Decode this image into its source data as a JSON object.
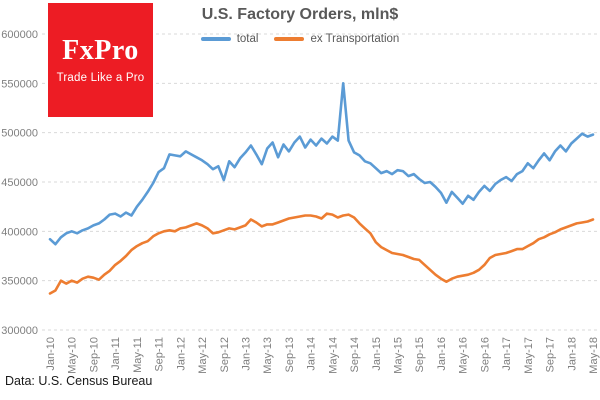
{
  "logo": {
    "name": "FxPro",
    "tagline": "Trade Like a Pro",
    "background_color": "#ED1C24",
    "text_color": "#FFFFFF"
  },
  "footer": {
    "source": "Data: U.S. Census Bureau"
  },
  "colors": {
    "total_line": "#5B9BD5",
    "ex_transportation_line": "#ED7D31",
    "gridline": "#D9D9D9",
    "axis_text": "#7F7F7F",
    "title_text": "#595959"
  },
  "chart_data": {
    "type": "line",
    "title": "U.S. Factory Orders, mln$",
    "xlabel": "",
    "ylabel": "",
    "ylim": [
      300000,
      600000
    ],
    "y_ticks": [
      600000,
      550000,
      500000,
      450000,
      400000,
      350000,
      300000
    ],
    "grid": "horizontal-dashed",
    "legend_position": "top",
    "x_start": "Jan-10",
    "x_end": "May-18",
    "x_frequency": "monthly",
    "x_tick_labels": [
      "Jan-10",
      "May-10",
      "Sep-10",
      "Jan-11",
      "May-11",
      "Sep-11",
      "Jan-12",
      "May-12",
      "Sep-12",
      "Jan-13",
      "May-13",
      "Sep-13",
      "Jan-14",
      "May-14",
      "Sep-14",
      "Jan-15",
      "May-15",
      "Sep-15",
      "Jan-16",
      "May-16",
      "Sep-16",
      "Jan-17",
      "May-17",
      "Sep-17",
      "Jan-18",
      "May-18"
    ],
    "series": [
      {
        "name": "total",
        "color": "#5B9BD5",
        "values": [
          392000,
          387000,
          394000,
          398000,
          400000,
          398000,
          401000,
          403000,
          406000,
          408000,
          412000,
          417000,
          418000,
          415000,
          419000,
          416000,
          425000,
          432000,
          440000,
          449000,
          460000,
          464000,
          478000,
          477000,
          476000,
          481000,
          478000,
          475000,
          472000,
          468000,
          463000,
          466000,
          452000,
          471000,
          465000,
          474000,
          480000,
          487000,
          478000,
          468000,
          484000,
          490000,
          475000,
          488000,
          481000,
          490000,
          496000,
          485000,
          493000,
          487000,
          494000,
          489000,
          496000,
          492000,
          550000,
          492000,
          480000,
          477000,
          471000,
          469000,
          464000,
          459000,
          461000,
          458000,
          462000,
          461000,
          456000,
          458000,
          453000,
          449000,
          450000,
          445000,
          439000,
          429000,
          440000,
          434000,
          428000,
          436000,
          432000,
          440000,
          446000,
          441000,
          448000,
          452000,
          455000,
          451000,
          458000,
          461000,
          469000,
          464000,
          472000,
          479000,
          472000,
          481000,
          487000,
          481000,
          489000,
          494000,
          499000,
          496000,
          498000
        ]
      },
      {
        "name": "ex Transportation",
        "color": "#ED7D31",
        "values": [
          337000,
          340000,
          350000,
          347000,
          350000,
          348000,
          352000,
          354000,
          353000,
          351000,
          356000,
          360000,
          366000,
          370000,
          375000,
          381000,
          385000,
          388000,
          390000,
          395000,
          398000,
          400000,
          401000,
          400000,
          403000,
          404000,
          406000,
          408000,
          406000,
          403000,
          398000,
          399000,
          401000,
          403000,
          402000,
          404000,
          406000,
          412000,
          409000,
          405000,
          407000,
          407000,
          409000,
          411000,
          413000,
          414000,
          415000,
          416000,
          416000,
          415000,
          413000,
          418000,
          417000,
          414000,
          416000,
          417000,
          414000,
          408000,
          403000,
          398000,
          389000,
          384000,
          381000,
          378000,
          377000,
          376000,
          374000,
          372000,
          371000,
          366000,
          361000,
          356000,
          352000,
          349000,
          352000,
          354000,
          355000,
          356000,
          358000,
          361000,
          366000,
          373000,
          376000,
          377000,
          378000,
          380000,
          382000,
          382000,
          385000,
          388000,
          392000,
          394000,
          397000,
          399000,
          402000,
          404000,
          406000,
          408000,
          409000,
          410000,
          412000
        ]
      }
    ]
  }
}
